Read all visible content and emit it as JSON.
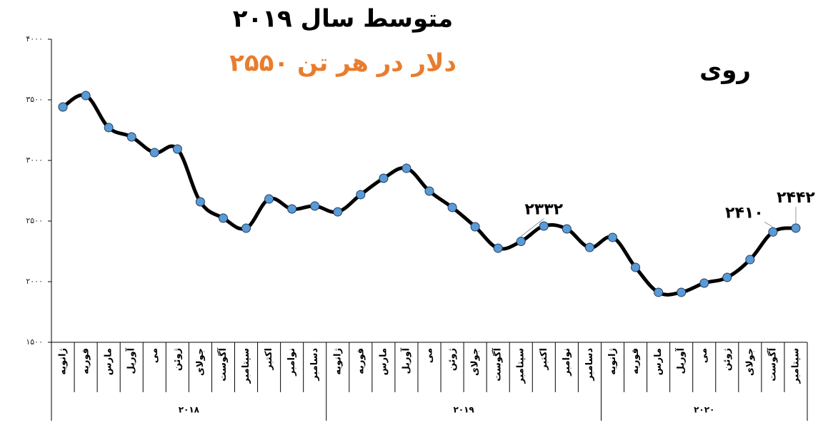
{
  "chart_data": {
    "type": "line",
    "title": "متوسط سال ۲۰۱۹",
    "subtitle": "۲۵۵۰ دلار در هر تن",
    "series_label": "روی",
    "category_groups": [
      {
        "name": "۲۰۱۸",
        "categories": [
          "ژانویه",
          "فوریه",
          "مارس",
          "آوریل",
          "می",
          "ژوئن",
          "جولای",
          "آگوست",
          "سپتامبر",
          "اکتبر",
          "نوامبر",
          "دسامبر"
        ]
      },
      {
        "name": "۲۰۱۹",
        "categories": [
          "ژانویه",
          "فوریه",
          "مارس",
          "آوریل",
          "می",
          "ژوئن",
          "جولای",
          "آگوست",
          "سپتامبر",
          "اکتبر",
          "نوامبر",
          "دسامبر"
        ]
      },
      {
        "name": "۲۰۲۰",
        "categories": [
          "ژانویه",
          "فوریه",
          "مارس",
          "آوریل",
          "می",
          "ژوئن",
          "جولای",
          "آگوست",
          "سپتامبر"
        ]
      }
    ],
    "values": [
      3441,
      3535,
      3271,
      3194,
      3065,
      3094,
      2659,
      2524,
      2441,
      2682,
      2600,
      2624,
      2576,
      2718,
      2853,
      2935,
      2747,
      2612,
      2453,
      2276,
      2332,
      2459,
      2435,
      2282,
      2365,
      2118,
      1912,
      1912,
      1988,
      2035,
      2182,
      2410,
      2442
    ],
    "value_labels": [
      null,
      null,
      null,
      null,
      null,
      null,
      null,
      null,
      null,
      null,
      null,
      null,
      null,
      null,
      null,
      null,
      null,
      null,
      null,
      null,
      "۲۳۳۲",
      null,
      null,
      null,
      null,
      null,
      null,
      null,
      null,
      null,
      null,
      "۲۴۱۰",
      "۲۴۴۲"
    ],
    "color": "#000000",
    "marker_color": "#5b9bd5",
    "ylim": [
      1500,
      4000
    ],
    "yticks": [
      {
        "value": 1500,
        "label": "۱۵۰۰"
      },
      {
        "value": 2000,
        "label": "۲۰۰۰"
      },
      {
        "value": 2500,
        "label": "۲۵۰۰"
      },
      {
        "value": 3000,
        "label": "۳۰۰۰"
      },
      {
        "value": 3500,
        "label": "۳۵۰۰"
      },
      {
        "value": 4000,
        "label": "۴۰۰۰"
      }
    ],
    "title_color": "#000000",
    "subtitle_color": "#e87d2e"
  }
}
